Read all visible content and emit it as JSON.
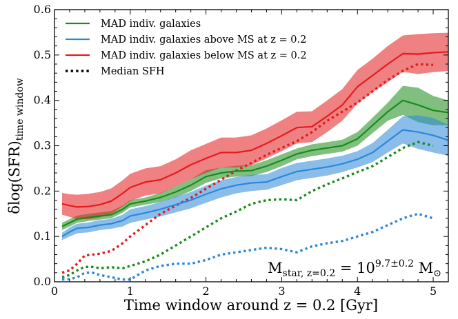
{
  "chart_data": {
    "type": "line",
    "title": "",
    "xlabel": "Time window around z = 0.2 [Gyr]",
    "ylabel": "δlog(SFR)",
    "ylabel_sub": "time window",
    "xlim": [
      0,
      5.2
    ],
    "ylim": [
      0,
      0.6
    ],
    "xticks": [
      0,
      1,
      2,
      3,
      4,
      5
    ],
    "yticks": [
      0.0,
      0.1,
      0.2,
      0.3,
      0.4,
      0.5,
      0.6
    ],
    "ytick_labels": [
      "0.0",
      "0.1",
      "0.2",
      "0.3",
      "0.4",
      "0.5",
      "0.6"
    ],
    "grid": false,
    "legend_position": "top-left",
    "annotation": {
      "main": "M",
      "main_sub": "star, z=0.2",
      "equals": " = 10",
      "exp": "9.7±0.2",
      "unit": " M",
      "unit_sub": "⊙"
    },
    "series": [
      {
        "name": "MAD indiv. galaxies",
        "color": "#1a8a1a",
        "style": "solid",
        "band_opacity": 0.55,
        "x": [
          0.1,
          0.2,
          0.3,
          0.45,
          0.6,
          0.75,
          0.9,
          1.0,
          1.2,
          1.4,
          1.6,
          1.8,
          2.0,
          2.2,
          2.4,
          2.6,
          2.8,
          3.0,
          3.2,
          3.4,
          3.6,
          3.8,
          4.0,
          4.2,
          4.4,
          4.6,
          4.8,
          5.0,
          5.2
        ],
        "values": [
          0.122,
          0.13,
          0.138,
          0.142,
          0.145,
          0.148,
          0.16,
          0.172,
          0.178,
          0.186,
          0.198,
          0.213,
          0.232,
          0.24,
          0.244,
          0.245,
          0.255,
          0.268,
          0.282,
          0.29,
          0.295,
          0.3,
          0.315,
          0.345,
          0.375,
          0.4,
          0.39,
          0.378,
          0.373
        ],
        "lower": [
          0.114,
          0.122,
          0.13,
          0.134,
          0.137,
          0.14,
          0.152,
          0.164,
          0.17,
          0.176,
          0.186,
          0.2,
          0.218,
          0.228,
          0.232,
          0.233,
          0.242,
          0.255,
          0.27,
          0.277,
          0.282,
          0.287,
          0.3,
          0.328,
          0.355,
          0.368,
          0.352,
          0.345,
          0.345
        ],
        "upper": [
          0.13,
          0.138,
          0.146,
          0.15,
          0.153,
          0.156,
          0.168,
          0.18,
          0.186,
          0.196,
          0.21,
          0.226,
          0.246,
          0.252,
          0.256,
          0.257,
          0.268,
          0.281,
          0.294,
          0.303,
          0.308,
          0.313,
          0.33,
          0.362,
          0.395,
          0.432,
          0.428,
          0.41,
          0.4
        ]
      },
      {
        "name": "MAD indiv. galaxies above MS at z = 0.2",
        "color": "#2b87d8",
        "style": "solid",
        "band_opacity": 0.55,
        "x": [
          0.1,
          0.2,
          0.3,
          0.45,
          0.6,
          0.75,
          0.9,
          1.0,
          1.2,
          1.4,
          1.6,
          1.8,
          2.0,
          2.2,
          2.4,
          2.6,
          2.8,
          3.0,
          3.2,
          3.4,
          3.6,
          3.8,
          4.0,
          4.2,
          4.4,
          4.6,
          4.8,
          5.0,
          5.2
        ],
        "values": [
          0.1,
          0.11,
          0.118,
          0.12,
          0.125,
          0.128,
          0.135,
          0.145,
          0.152,
          0.16,
          0.17,
          0.18,
          0.193,
          0.205,
          0.213,
          0.218,
          0.22,
          0.232,
          0.243,
          0.248,
          0.253,
          0.26,
          0.27,
          0.285,
          0.31,
          0.335,
          0.33,
          0.323,
          0.312
        ],
        "lower": [
          0.092,
          0.1,
          0.107,
          0.109,
          0.114,
          0.117,
          0.122,
          0.13,
          0.137,
          0.144,
          0.153,
          0.162,
          0.174,
          0.186,
          0.195,
          0.2,
          0.203,
          0.213,
          0.224,
          0.229,
          0.234,
          0.242,
          0.252,
          0.264,
          0.285,
          0.305,
          0.293,
          0.285,
          0.278
        ],
        "upper": [
          0.108,
          0.12,
          0.128,
          0.131,
          0.136,
          0.139,
          0.148,
          0.16,
          0.167,
          0.176,
          0.187,
          0.198,
          0.212,
          0.224,
          0.231,
          0.236,
          0.237,
          0.251,
          0.262,
          0.267,
          0.272,
          0.278,
          0.288,
          0.306,
          0.335,
          0.365,
          0.367,
          0.361,
          0.346
        ]
      },
      {
        "name": "MAD indiv. galaxies below MS at z = 0.2",
        "color": "#e41a1c",
        "style": "solid",
        "band_opacity": 0.55,
        "x": [
          0.1,
          0.2,
          0.3,
          0.45,
          0.6,
          0.75,
          0.9,
          1.0,
          1.2,
          1.4,
          1.6,
          1.8,
          2.0,
          2.2,
          2.4,
          2.6,
          2.8,
          3.0,
          3.2,
          3.4,
          3.6,
          3.8,
          4.0,
          4.2,
          4.4,
          4.6,
          4.8,
          5.0,
          5.2
        ],
        "values": [
          0.172,
          0.168,
          0.165,
          0.166,
          0.17,
          0.178,
          0.195,
          0.208,
          0.22,
          0.225,
          0.24,
          0.258,
          0.272,
          0.285,
          0.285,
          0.29,
          0.305,
          0.322,
          0.34,
          0.342,
          0.365,
          0.39,
          0.43,
          0.455,
          0.48,
          0.503,
          0.502,
          0.505,
          0.507
        ],
        "lower": [
          0.148,
          0.143,
          0.138,
          0.138,
          0.142,
          0.15,
          0.166,
          0.178,
          0.19,
          0.195,
          0.21,
          0.226,
          0.24,
          0.252,
          0.252,
          0.257,
          0.272,
          0.288,
          0.305,
          0.308,
          0.33,
          0.355,
          0.393,
          0.418,
          0.44,
          0.463,
          0.458,
          0.462,
          0.465
        ],
        "upper": [
          0.196,
          0.193,
          0.192,
          0.194,
          0.198,
          0.206,
          0.224,
          0.238,
          0.25,
          0.255,
          0.27,
          0.29,
          0.304,
          0.318,
          0.318,
          0.323,
          0.338,
          0.356,
          0.375,
          0.376,
          0.4,
          0.425,
          0.467,
          0.492,
          0.52,
          0.543,
          0.546,
          0.548,
          0.549
        ]
      },
      {
        "name": "Median SFH",
        "color": "#000000",
        "style": "dotted",
        "legend_only": true
      },
      {
        "color": "#e41a1c",
        "style": "dotted",
        "x": [
          0.1,
          0.2,
          0.3,
          0.4,
          0.5,
          0.6,
          0.75,
          0.9,
          1.0,
          1.2,
          1.4,
          1.6,
          1.8,
          2.0,
          2.2,
          2.4,
          2.6,
          2.8,
          3.0,
          3.2,
          3.4,
          3.6,
          3.8,
          4.0,
          4.2,
          4.4,
          4.6,
          4.8,
          5.0
        ],
        "values": [
          0.02,
          0.025,
          0.04,
          0.058,
          0.06,
          0.062,
          0.068,
          0.085,
          0.1,
          0.125,
          0.15,
          0.168,
          0.185,
          0.205,
          0.225,
          0.245,
          0.262,
          0.28,
          0.295,
          0.31,
          0.33,
          0.355,
          0.375,
          0.395,
          0.42,
          0.445,
          0.465,
          0.48,
          0.478
        ]
      },
      {
        "color": "#1a8a1a",
        "style": "dotted",
        "x": [
          0.1,
          0.2,
          0.3,
          0.4,
          0.5,
          0.6,
          0.75,
          0.9,
          1.0,
          1.2,
          1.4,
          1.6,
          1.8,
          2.0,
          2.2,
          2.4,
          2.6,
          2.8,
          3.0,
          3.2,
          3.4,
          3.6,
          3.8,
          4.0,
          4.2,
          4.4,
          4.6,
          4.8,
          5.0
        ],
        "values": [
          0.01,
          0.015,
          0.025,
          0.033,
          0.033,
          0.03,
          0.032,
          0.03,
          0.035,
          0.045,
          0.06,
          0.08,
          0.1,
          0.12,
          0.14,
          0.155,
          0.172,
          0.18,
          0.182,
          0.18,
          0.2,
          0.215,
          0.228,
          0.242,
          0.255,
          0.275,
          0.295,
          0.308,
          0.3
        ]
      },
      {
        "color": "#2b87d8",
        "style": "dotted",
        "x": [
          0.1,
          0.2,
          0.3,
          0.4,
          0.5,
          0.6,
          0.75,
          0.9,
          1.0,
          1.2,
          1.4,
          1.6,
          1.8,
          2.0,
          2.2,
          2.4,
          2.6,
          2.8,
          3.0,
          3.2,
          3.4,
          3.6,
          3.8,
          4.0,
          4.2,
          4.4,
          4.6,
          4.8,
          5.0
        ],
        "values": [
          0.005,
          0.006,
          0.01,
          0.02,
          0.02,
          0.015,
          0.01,
          0.005,
          0.005,
          0.025,
          0.035,
          0.04,
          0.04,
          0.048,
          0.06,
          0.065,
          0.07,
          0.075,
          0.072,
          0.065,
          0.078,
          0.085,
          0.09,
          0.1,
          0.11,
          0.125,
          0.14,
          0.15,
          0.14
        ]
      }
    ]
  }
}
